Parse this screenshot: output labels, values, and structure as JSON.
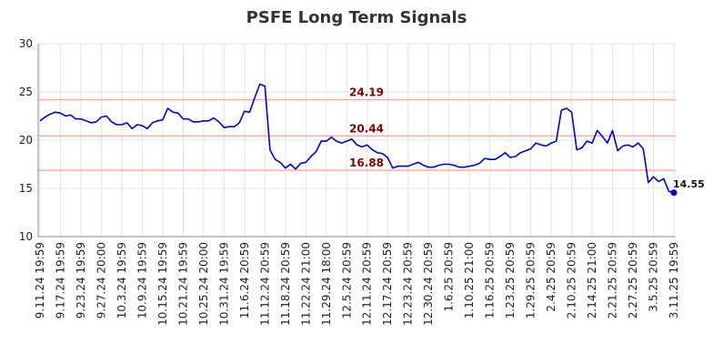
{
  "chart_data": {
    "type": "line",
    "title": "PSFE Long Term Signals",
    "xlabel": "",
    "ylabel": "",
    "ylim": [
      10,
      30
    ],
    "yticks": [
      10,
      15,
      20,
      25,
      30
    ],
    "grid": true,
    "legend": "none",
    "line_color": "#0000cc",
    "ref_color": "#ffaaaa",
    "ref_label_color": "#800000",
    "xtick_labels": [
      "9.11.24 19:59",
      "9.17.24 19:59",
      "9.23.24 19:59",
      "9.27.24 20:00",
      "10.3.24 19:59",
      "10.9.24 19:59",
      "10.15.24 19:59",
      "10.21.24 19:59",
      "10.25.24 20:00",
      "10.31.24 19:59",
      "11.6.24 20:59",
      "11.12.24 20:59",
      "11.18.24 20:59",
      "11.22.24 21:00",
      "11.29.24 18:00",
      "12.5.24 20:59",
      "12.11.24 20:59",
      "12.17.24 20:59",
      "12.23.24 20:59",
      "12.30.24 20:59",
      "1.6.25 20:59",
      "1.10.25 21:00",
      "1.16.25 20:59",
      "1.23.25 20:59",
      "1.29.25 20:59",
      "2.4.25 20:59",
      "2.10.25 20:59",
      "2.14.25 21:00",
      "2.21.25 20:59",
      "2.27.25 20:59",
      "3.5.25 20:59",
      "3.11.25 19:59"
    ],
    "reference_lines": [
      {
        "value": 24.19,
        "label": "24.19"
      },
      {
        "value": 20.44,
        "label": "20.44"
      },
      {
        "value": 16.88,
        "label": "16.88"
      }
    ],
    "last_value_label": "14.55",
    "values": [
      22.0,
      22.4,
      22.7,
      22.9,
      22.8,
      22.5,
      22.6,
      22.2,
      22.2,
      22.0,
      21.8,
      21.9,
      22.4,
      22.5,
      21.9,
      21.6,
      21.6,
      21.8,
      21.2,
      21.6,
      21.5,
      21.2,
      21.8,
      22.0,
      22.1,
      23.3,
      22.9,
      22.8,
      22.2,
      22.2,
      21.9,
      21.9,
      22.0,
      22.0,
      22.3,
      21.9,
      21.3,
      21.4,
      21.4,
      21.8,
      23.0,
      22.9,
      24.4,
      25.8,
      25.6,
      19.0,
      18.0,
      17.7,
      17.1,
      17.5,
      17.0,
      17.6,
      17.7,
      18.3,
      18.8,
      19.9,
      19.9,
      20.3,
      19.9,
      19.7,
      19.9,
      20.1,
      19.5,
      19.3,
      19.5,
      19.0,
      18.7,
      18.6,
      18.2,
      17.1,
      17.3,
      17.3,
      17.3,
      17.5,
      17.7,
      17.4,
      17.2,
      17.2,
      17.4,
      17.5,
      17.5,
      17.4,
      17.2,
      17.2,
      17.3,
      17.4,
      17.6,
      18.1,
      18.0,
      18.0,
      18.3,
      18.7,
      18.2,
      18.3,
      18.7,
      18.9,
      19.1,
      19.7,
      19.5,
      19.4,
      19.7,
      19.9,
      23.1,
      23.3,
      22.9,
      19.0,
      19.2,
      19.9,
      19.7,
      21.0,
      20.4,
      19.7,
      21.0,
      18.9,
      19.4,
      19.5,
      19.3,
      19.7,
      19.1,
      15.6,
      16.2,
      15.7,
      16.0,
      14.7,
      14.55
    ]
  }
}
